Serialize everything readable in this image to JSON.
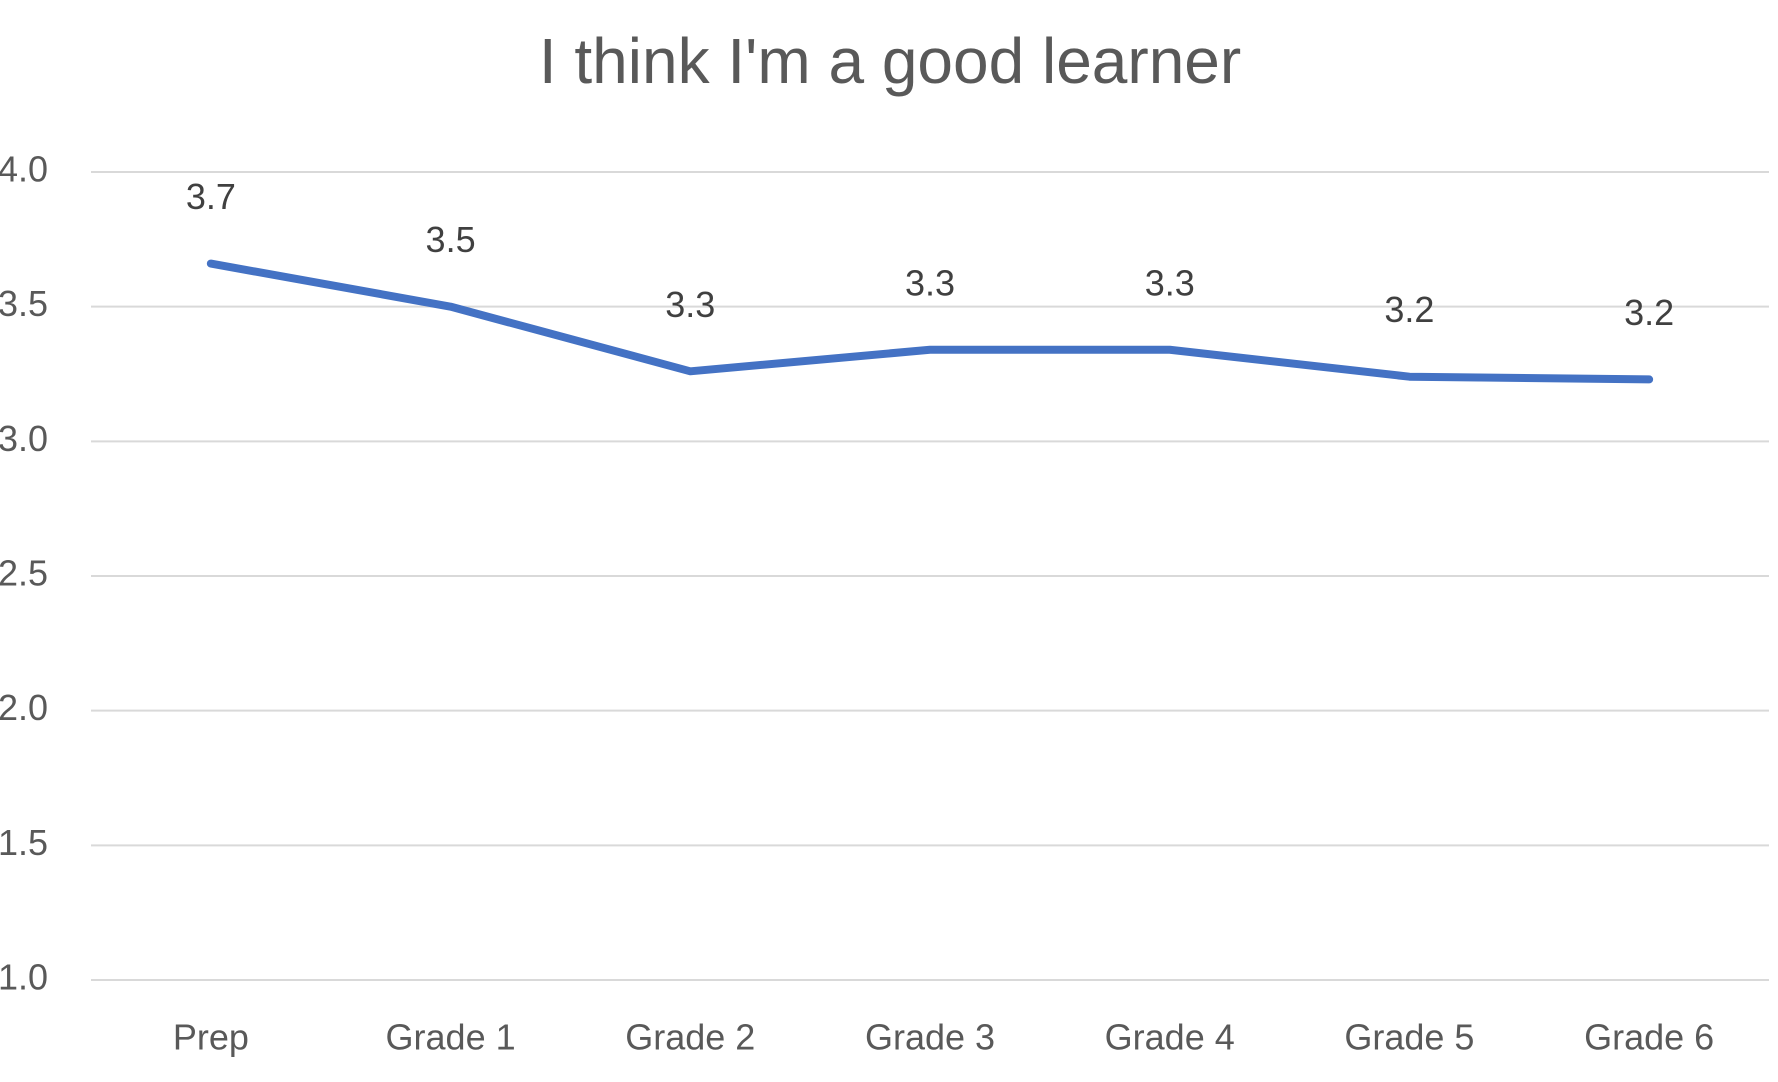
{
  "chart_data": {
    "type": "line",
    "title": "I think I'm a good learner",
    "categories": [
      "Prep",
      "Grade 1",
      "Grade 2",
      "Grade 3",
      "Grade 4",
      "Grade 5",
      "Grade 6"
    ],
    "values": [
      3.66,
      3.5,
      3.26,
      3.34,
      3.34,
      3.24,
      3.23
    ],
    "value_labels": [
      "3.7",
      "3.5",
      "3.3",
      "3.3",
      "3.3",
      "3.2",
      "3.2"
    ],
    "color": "#4472c4",
    "ylim": [
      1,
      4
    ],
    "yticks": [
      {
        "value": 1,
        "label": "1.0"
      },
      {
        "value": 1.5,
        "label": "1.5"
      },
      {
        "value": 2,
        "label": "2.0"
      },
      {
        "value": 2.5,
        "label": "2.5"
      },
      {
        "value": 3,
        "label": "3.0"
      },
      {
        "value": 3.5,
        "label": "3.5"
      },
      {
        "value": 4,
        "label": "4.0"
      }
    ],
    "grid": true
  }
}
